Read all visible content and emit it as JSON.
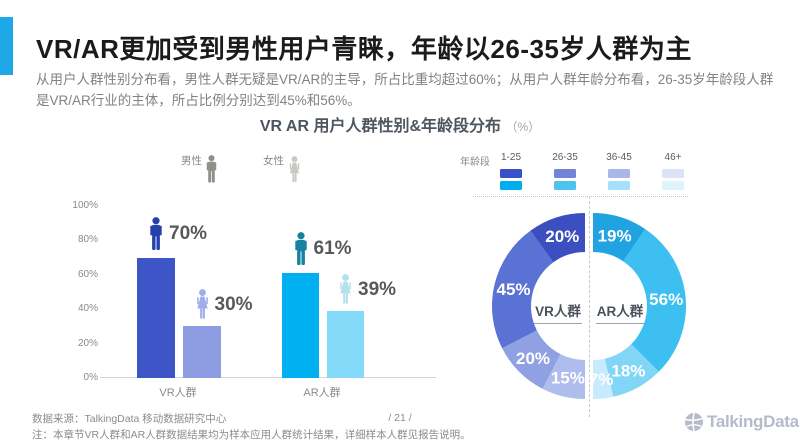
{
  "header": {
    "title": "VR/AR更加受到男性用户青睐，年龄以26-35岁人群为主",
    "subtitle": "从用户人群性别分布看，男性人群无疑是VR/AR的主导，所占比重均超过60%；从用户人群年龄分布看，26-35岁年龄段人群是VR/AR行业的主体，所占比例分别达到45%和56%。",
    "accent_color": "#1fa8e8"
  },
  "chart_title": {
    "text": "VR AR 用户人群性别&年龄段分布",
    "unit": "（%）"
  },
  "chart_data": [
    {
      "type": "bar",
      "title": "VR AR 用户人群性别&年龄段分布（%）",
      "categories": [
        "VR人群",
        "AR人群"
      ],
      "series": [
        {
          "name": "男性",
          "values": [
            70,
            61
          ],
          "bar_colors": [
            "#3d55c7",
            "#00b0f0"
          ],
          "icon_colors": [
            "#2340ad",
            "#17829f"
          ]
        },
        {
          "name": "女性",
          "values": [
            30,
            39
          ],
          "bar_colors": [
            "#8d9ce0",
            "#85d9f8"
          ],
          "icon_colors": [
            "#9fadea",
            "#b2e0ec"
          ]
        }
      ],
      "yticks": [
        "0%",
        "20%",
        "40%",
        "60%",
        "80%",
        "100%"
      ],
      "ylim": [
        0,
        100
      ],
      "grid": false,
      "legend_position": "top",
      "legend_icon_colors": {
        "male": "#8f8f88",
        "female": "#c9c9c3"
      }
    },
    {
      "type": "pie",
      "subtype": "paired-half-donuts",
      "legend_title": "年龄段",
      "categories": [
        "1-25",
        "26-35",
        "36-45",
        "46+"
      ],
      "series": [
        {
          "name": "VR人群",
          "values": [
            20,
            45,
            20,
            15
          ],
          "colors": [
            "#3c4fc0",
            "#5b72d5",
            "#8fa0e3",
            "#aebdec"
          ],
          "legend_colors": [
            "#3a50c8",
            "#7283da",
            "#a9b7e8",
            "#dce3f8"
          ]
        },
        {
          "name": "AR人群",
          "values": [
            19,
            56,
            18,
            7
          ],
          "colors": [
            "#22a3e1",
            "#3dc0f1",
            "#81d5f7",
            "#c7eafc"
          ],
          "legend_colors": [
            "#00aeef",
            "#4fc3f0",
            "#a6e0fa",
            "#def3fd"
          ]
        }
      ],
      "label_color": "#ffffff"
    }
  ],
  "footer": {
    "source": "数据来源：TalkingData 移动数据研究中心",
    "page": "/ 21 /",
    "note": "注：本章节VR人群和AR人群数据结果均为样本应用人群统计结果，详细样本人群见报告说明。",
    "logo_text": "TalkingData",
    "logo_color": "#b5bbc9"
  }
}
